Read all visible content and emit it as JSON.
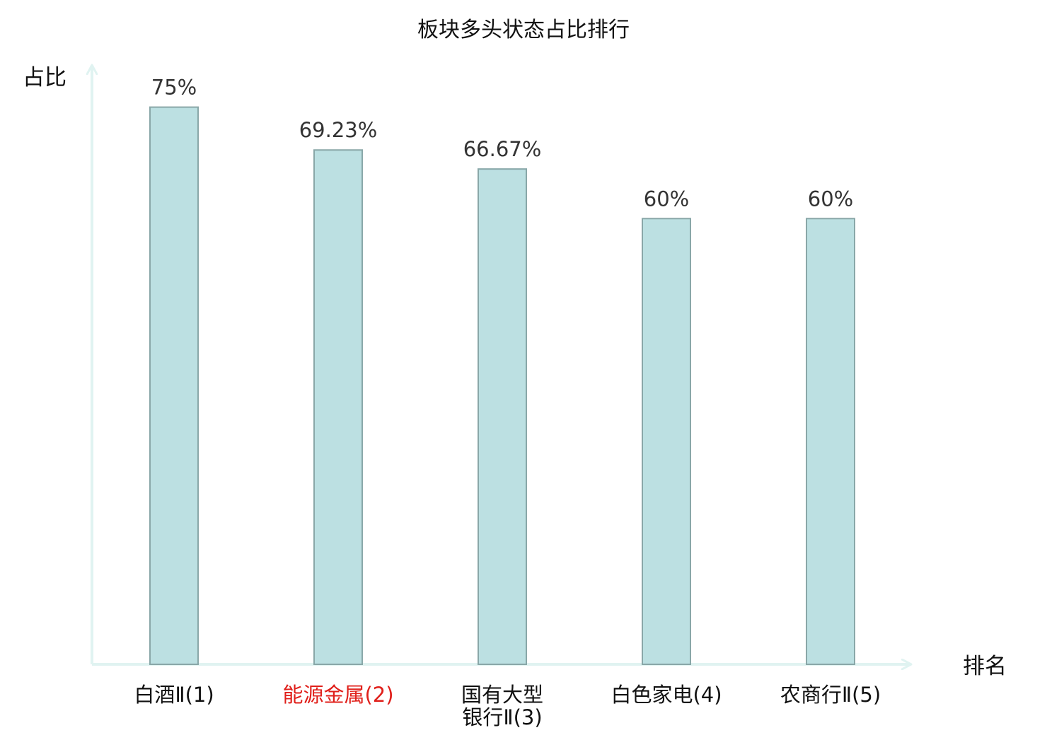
{
  "chart_data": {
    "type": "bar",
    "title": "板块多头状态占比排行",
    "xlabel": "排名",
    "ylabel": "占比",
    "ylim": [
      0,
      82
    ],
    "grid": false,
    "legend": "none",
    "categories": [
      [
        "白酒Ⅱ(1)"
      ],
      [
        "能源金属(2)"
      ],
      [
        "国有大型",
        "银行Ⅱ(3)"
      ],
      [
        "白色家电(4)"
      ],
      [
        "农商行Ⅱ(5)"
      ]
    ],
    "values": [
      75,
      69.23,
      66.67,
      60,
      60
    ],
    "value_labels": [
      "75%",
      "69.23%",
      "66.67%",
      "60%",
      "60%"
    ],
    "highlight_index": 1,
    "colors": {
      "bar_fill": "#bce0e2",
      "bar_stroke": "#89a7a8",
      "axis": "#e0f3f1",
      "label": "#111111",
      "highlight_label": "#e0201b"
    }
  }
}
